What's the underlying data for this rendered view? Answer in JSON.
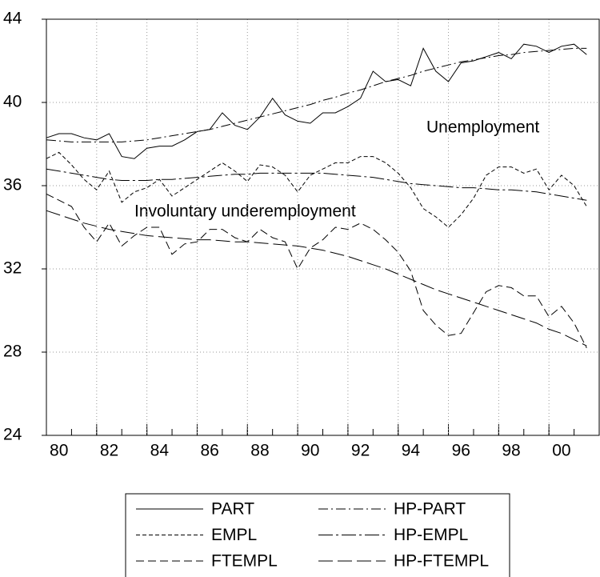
{
  "chart_data": {
    "type": "line",
    "annotations": [
      "Unemployment",
      "Involuntary underemployment"
    ],
    "x": [
      1980,
      1980.5,
      1981,
      1981.5,
      1982,
      1982.5,
      1983,
      1983.5,
      1984,
      1984.5,
      1985,
      1985.5,
      1986,
      1986.5,
      1987,
      1987.5,
      1988,
      1988.5,
      1989,
      1989.5,
      1990,
      1990.5,
      1991,
      1991.5,
      1992,
      1992.5,
      1993,
      1993.5,
      1994,
      1994.5,
      1995,
      1995.5,
      1996,
      1996.5,
      1997,
      1997.5,
      1998,
      1998.5,
      1999,
      1999.5,
      2000,
      2000.5,
      2001,
      2001.5
    ],
    "series": [
      {
        "name": "PART",
        "color": "#000000",
        "style": "solid",
        "values": [
          38.3,
          38.5,
          38.5,
          38.3,
          38.2,
          38.5,
          37.4,
          37.3,
          37.8,
          37.9,
          37.9,
          38.2,
          38.6,
          38.7,
          39.5,
          38.9,
          38.7,
          39.3,
          40.2,
          39.4,
          39.1,
          39.0,
          39.5,
          39.5,
          39.8,
          40.2,
          41.5,
          41.0,
          41.1,
          40.8,
          42.6,
          41.5,
          41.0,
          41.9,
          42.0,
          42.2,
          42.4,
          42.1,
          42.8,
          42.7,
          42.4,
          42.7,
          42.8,
          42.3
        ]
      },
      {
        "name": "HP-PART",
        "color": "#000000",
        "style": "dashdot",
        "values": [
          38.2,
          38.15,
          38.1,
          38.1,
          38.1,
          38.1,
          38.1,
          38.15,
          38.2,
          38.3,
          38.4,
          38.5,
          38.6,
          38.7,
          38.85,
          39.0,
          39.15,
          39.3,
          39.45,
          39.6,
          39.75,
          39.9,
          40.1,
          40.25,
          40.45,
          40.6,
          40.8,
          41.0,
          41.15,
          41.3,
          41.5,
          41.65,
          41.8,
          41.95,
          42.05,
          42.15,
          42.25,
          42.3,
          42.4,
          42.45,
          42.5,
          42.55,
          42.6,
          42.6
        ]
      },
      {
        "name": "EMPL",
        "color": "#000000",
        "style": "shortdash",
        "values": [
          37.3,
          37.6,
          37.0,
          36.3,
          35.8,
          36.7,
          35.2,
          35.7,
          35.9,
          36.3,
          35.5,
          35.9,
          36.3,
          36.7,
          37.1,
          36.7,
          36.2,
          37.0,
          36.9,
          36.5,
          35.7,
          36.5,
          36.8,
          37.1,
          37.1,
          37.4,
          37.4,
          37.1,
          36.6,
          35.9,
          34.9,
          34.5,
          34.0,
          34.6,
          35.4,
          36.5,
          36.9,
          36.9,
          36.6,
          36.8,
          35.8,
          36.5,
          36.0,
          35.0
        ]
      },
      {
        "name": "HP-EMPL",
        "color": "#000000",
        "style": "longdashdot",
        "values": [
          36.8,
          36.7,
          36.6,
          36.5,
          36.4,
          36.3,
          36.25,
          36.25,
          36.25,
          36.3,
          36.3,
          36.35,
          36.4,
          36.45,
          36.5,
          36.55,
          36.55,
          36.6,
          36.6,
          36.6,
          36.6,
          36.6,
          36.6,
          36.55,
          36.5,
          36.45,
          36.4,
          36.3,
          36.2,
          36.1,
          36.05,
          36.0,
          35.95,
          35.9,
          35.9,
          35.85,
          35.8,
          35.8,
          35.75,
          35.7,
          35.6,
          35.5,
          35.4,
          35.3
        ]
      },
      {
        "name": "FTEMPL",
        "color": "#000000",
        "style": "dash",
        "values": [
          35.6,
          35.3,
          35.0,
          34.0,
          33.3,
          34.2,
          33.1,
          33.6,
          34.0,
          34.0,
          32.7,
          33.2,
          33.3,
          33.9,
          33.9,
          33.5,
          33.3,
          33.9,
          33.5,
          33.3,
          32.0,
          33.0,
          33.4,
          34.0,
          33.9,
          34.2,
          33.9,
          33.4,
          32.8,
          31.9,
          30.0,
          29.3,
          28.8,
          28.9,
          29.9,
          30.9,
          31.2,
          31.1,
          30.7,
          30.7,
          29.7,
          30.2,
          29.4,
          28.2
        ]
      },
      {
        "name": "HP-FTEMPL",
        "color": "#000000",
        "style": "longdash",
        "values": [
          34.8,
          34.6,
          34.4,
          34.2,
          34.05,
          33.9,
          33.8,
          33.7,
          33.6,
          33.55,
          33.5,
          33.45,
          33.4,
          33.4,
          33.35,
          33.3,
          33.3,
          33.25,
          33.2,
          33.15,
          33.1,
          33.0,
          32.9,
          32.75,
          32.6,
          32.4,
          32.2,
          32.0,
          31.75,
          31.5,
          31.25,
          31.0,
          30.8,
          30.6,
          30.4,
          30.2,
          30.0,
          29.8,
          29.6,
          29.4,
          29.1,
          28.9,
          28.6,
          28.3
        ]
      }
    ],
    "xlim": [
      1980,
      2002
    ],
    "xticks": [
      {
        "value": 1980,
        "label": "80"
      },
      {
        "value": 1982,
        "label": "82"
      },
      {
        "value": 1984,
        "label": "84"
      },
      {
        "value": 1986,
        "label": "86"
      },
      {
        "value": 1988,
        "label": "88"
      },
      {
        "value": 1990,
        "label": "90"
      },
      {
        "value": 1992,
        "label": "92"
      },
      {
        "value": 1994,
        "label": "94"
      },
      {
        "value": 1996,
        "label": "96"
      },
      {
        "value": 1998,
        "label": "98"
      },
      {
        "value": 2000,
        "label": "00"
      }
    ],
    "ylim": [
      24,
      44
    ],
    "yticks": [
      24,
      28,
      32,
      36,
      40,
      44
    ],
    "grid": true,
    "legend": "bottom"
  }
}
